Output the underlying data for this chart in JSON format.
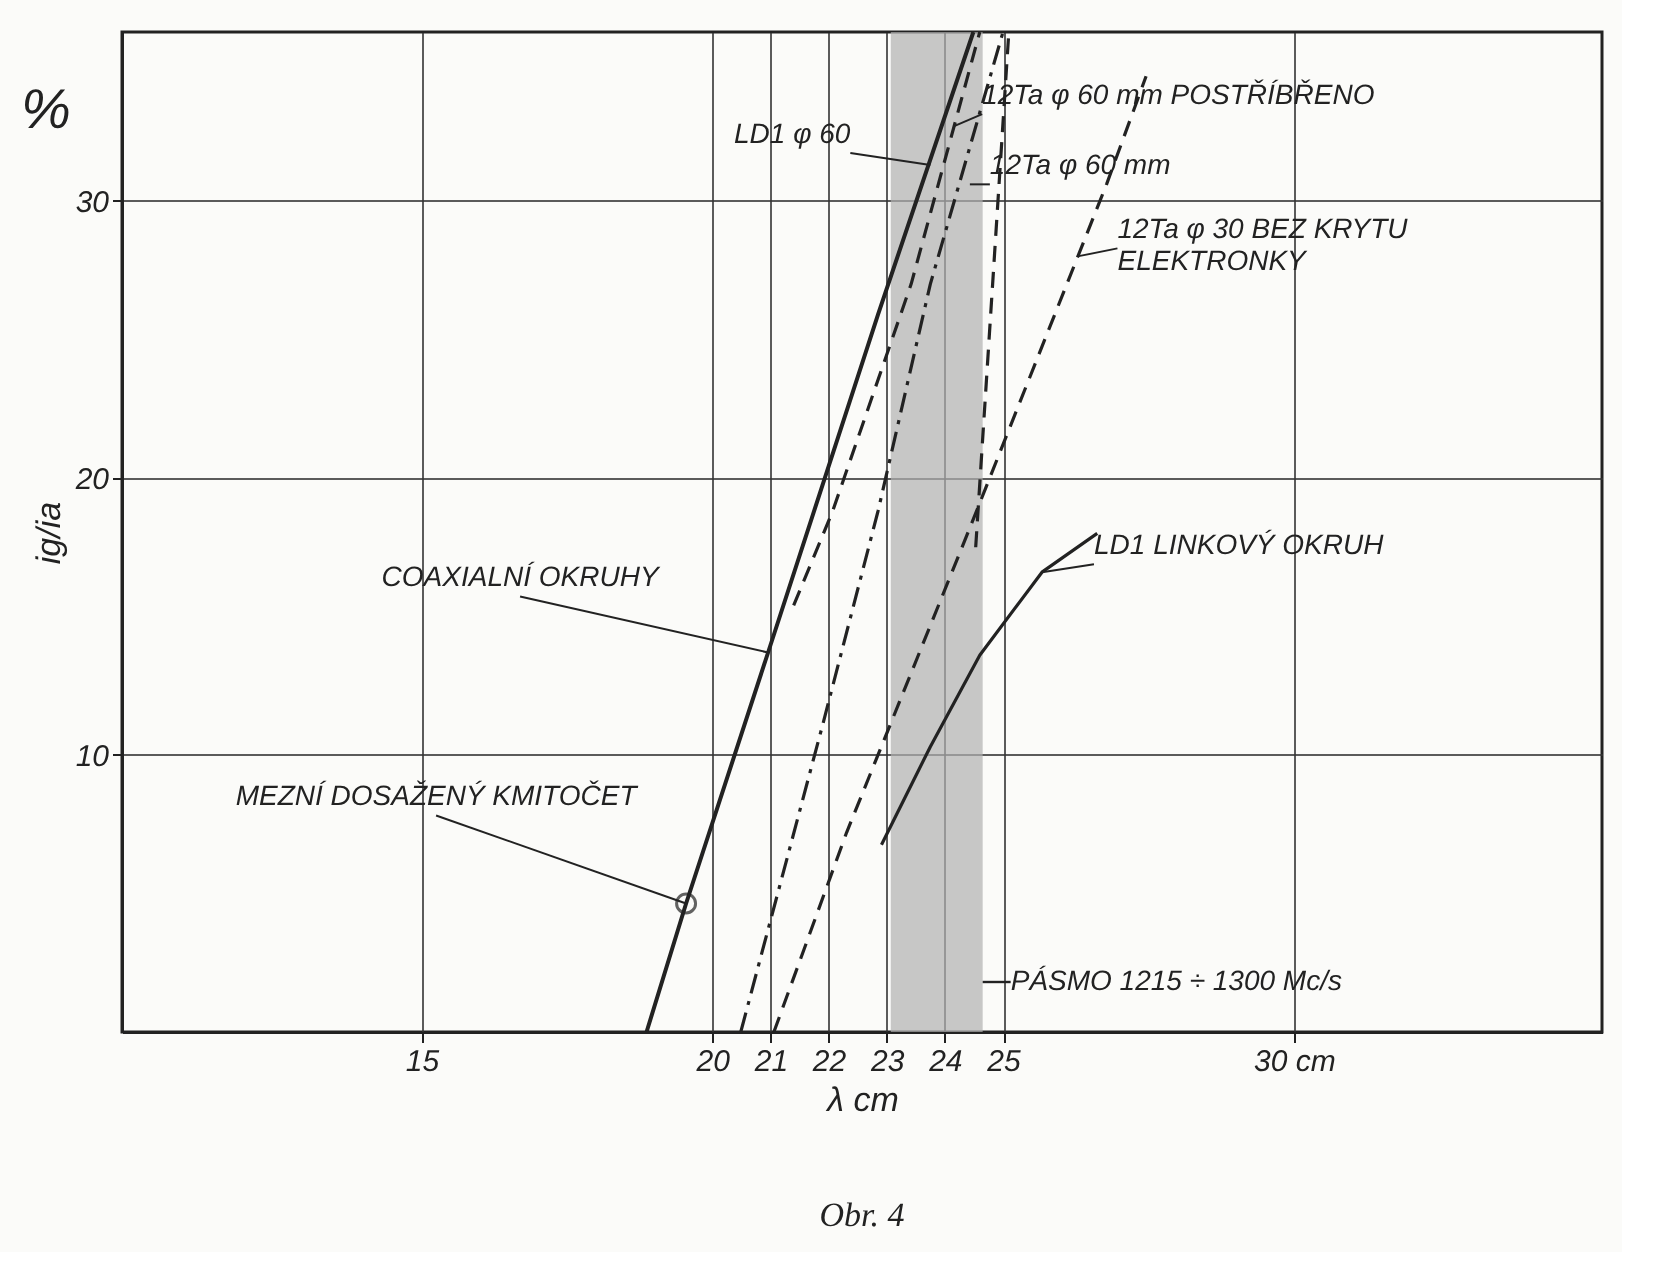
{
  "chart_data": {
    "type": "line",
    "xlabel": "λ cm",
    "ylabel": "ig/ia",
    "xlim": [
      9.85,
      35.3
    ],
    "ylim": [
      0,
      36.1
    ],
    "xticks": [
      15,
      20,
      21,
      22,
      23,
      24,
      25,
      {
        "value": 30,
        "label": "30 cm"
      }
    ],
    "yticks": [
      10,
      20,
      30
    ],
    "grid": true,
    "series": [
      {
        "color": "#222222",
        "line_style": "solid",
        "x": [
          18.87,
          19.55,
          20.96,
          22.85,
          24.49
        ],
        "values": [
          0,
          4.64,
          13.7,
          25.9,
          36.1
        ]
      },
      {
        "color": "#222222",
        "line_style": "dashdot",
        "x": [
          20.49,
          21.9,
          22.85,
          23.75,
          25.0
        ],
        "values": [
          0,
          11.1,
          18.8,
          27.0,
          36.1
        ]
      },
      {
        "color": "#222222",
        "line_style": "dashed",
        "x": [
          21.4,
          22.07,
          23.42,
          24.6
        ],
        "values": [
          15.4,
          18.8,
          27.0,
          36.1
        ]
      },
      {
        "color": "#222222",
        "line_style": "dashed",
        "x": [
          21.06,
          22.31,
          24.43,
          26.78,
          27.46
        ],
        "values": [
          0,
          7.2,
          18.2,
          30.6,
          34.5
        ]
      },
      {
        "color": "#222222",
        "line_style": "dashed",
        "x": [
          24.53,
          25.1
        ],
        "values": [
          17.5,
          36.1
        ]
      },
      {
        "color": "#222222",
        "line_style": "solid",
        "x": [
          22.91,
          23.75,
          24.6,
          25.67,
          26.62
        ],
        "values": [
          6.76,
          10.3,
          13.6,
          16.6,
          18.0
        ]
      },
      {
        "type": "scatter",
        "marker": "circle",
        "color": "#222222",
        "x": [
          19.55
        ],
        "values": [
          4.64
        ]
      }
    ],
    "bands": [
      {
        "axis": "x",
        "from": 23.07,
        "to": 24.65,
        "label": "PÁSMO 1215 ÷ 1300 Mc/s",
        "color": "#b0b0b0"
      }
    ],
    "annotations": [
      {
        "text": "12Ta φ 60 mm POSTŘÍBŘENO",
        "x": 24.16,
        "y": 32.7
      },
      {
        "text": "LD1 φ 60",
        "x": 23.75,
        "y": 31.3
      },
      {
        "text": "12Ta φ 60 mm",
        "x": 24.43,
        "y": 30.6
      },
      {
        "text": "12Ta φ 30  BEZ KRYTU\nELEKTRONKY",
        "x": 26.28,
        "y": 28.0
      },
      {
        "text": "LD1 LINKOVÝ OKRUH",
        "x": 25.67,
        "y": 16.6
      },
      {
        "text": "COAXIALNÍ OKRUHY",
        "x": 20.96,
        "y": 13.7
      },
      {
        "text": "MEZNÍ DOSAŽENÝ KMITOČET",
        "x": 19.55,
        "y": 4.64
      },
      "%",
      "Obr. 4"
    ]
  }
}
